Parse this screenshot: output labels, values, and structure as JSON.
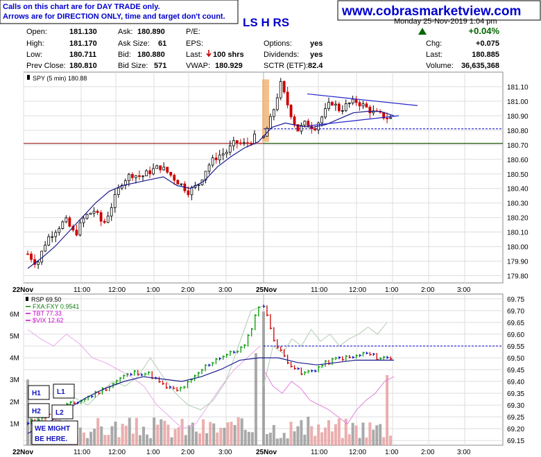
{
  "header": {
    "disclaimer_line1": "Calls on this chart are for DAY TRADE only.",
    "disclaimer_line2": "Arrows are for DIRECTION ONLY, time and target don't count.",
    "website": "www.cobrasmarketview.com",
    "pattern_label": "LS H RS",
    "date_label": "Monday 25-Nov-2019 1:04 pm",
    "change_pct": "+0.04%",
    "colors": {
      "disclaimer": "#0000cc",
      "website": "#0000cc",
      "pattern": "#0000cc",
      "change_pct": "#006600",
      "up_arrow": "#006600"
    }
  },
  "quote": {
    "open_label": "Open:",
    "open": "181.130",
    "high_label": "High:",
    "high": "181.170",
    "low_label": "Low:",
    "low": "180.711",
    "prev_close_label": "Prev Close:",
    "prev_close": "180.810",
    "ask_label": "Ask:",
    "ask": "180.890",
    "ask_size_label": "Ask Size:",
    "ask_size": "61",
    "bid_label": "Bid:",
    "bid": "180.880",
    "bid_size_label": "Bid Size:",
    "bid_size": "571",
    "pe_label": "P/E:",
    "pe": "",
    "eps_label": "EPS:",
    "eps": "",
    "last_label": "Last:",
    "last_shrs": "100 shrs",
    "vwap_label": "VWAP:",
    "vwap": "180.929",
    "options_label": "Options:",
    "options": "yes",
    "dividends_label": "Dividends:",
    "dividends": "yes",
    "sctr_label": "SCTR (ETF):",
    "sctr": "82.4",
    "chg_label": "Chg:",
    "chg": "+0.075",
    "last2_label": "Last:",
    "last": "180.885",
    "volume_label": "Volume:",
    "volume": "36,635,368"
  },
  "chart_data": [
    {
      "type": "candlestick",
      "legend": "SPY (5 min) 180.88",
      "ylim": [
        179.75,
        181.2
      ],
      "yticks": [
        "181.10",
        "181.00",
        "180.90",
        "180.80",
        "180.70",
        "180.60",
        "180.50",
        "180.40",
        "180.30",
        "180.20",
        "180.10",
        "180.00",
        "179.90",
        "179.80"
      ],
      "ytick_values": [
        181.1,
        181.0,
        180.9,
        180.8,
        180.7,
        180.6,
        180.5,
        180.4,
        180.3,
        180.2,
        180.1,
        180.0,
        179.9,
        179.8
      ],
      "xtick_labels": [
        "22Nov",
        "11:00",
        "12:00",
        "1:00",
        "2:00",
        "3:00",
        "25Nov",
        "11:00",
        "12:00",
        "1:00",
        "2:00",
        "3:00"
      ],
      "close_path": [
        179.95,
        179.88,
        180.05,
        180.12,
        180.18,
        180.08,
        180.2,
        180.25,
        180.15,
        180.3,
        180.45,
        180.5,
        180.48,
        180.52,
        180.55,
        180.5,
        180.44,
        180.38,
        180.42,
        180.55,
        180.62,
        180.65,
        180.72,
        180.7,
        180.75,
        180.9,
        181.12,
        180.95,
        180.8,
        180.85,
        180.82,
        180.9,
        181.0,
        180.94,
        180.98,
        181.0,
        180.96,
        180.92,
        180.9,
        180.88
      ],
      "ma_path": [
        179.85,
        179.92,
        180.0,
        180.1,
        180.2,
        180.3,
        180.38,
        180.42,
        180.44,
        180.46,
        180.48,
        180.42,
        180.4,
        180.45,
        180.55,
        180.62,
        180.68,
        180.72,
        180.82,
        180.85,
        180.83,
        180.82,
        180.84,
        180.88,
        180.92,
        180.93,
        180.93,
        180.9
      ],
      "prev_close_line": 180.81,
      "support_line": 180.71,
      "triangle_upper": [
        [
          181.03,
          180.97
        ]
      ],
      "triangle_lower": [
        [
          180.83,
          180.9
        ]
      ],
      "colors": {
        "up": "#000000",
        "down": "#cc0000",
        "ma": "#1a1a8c",
        "prev_close": "#0000cc",
        "support": "#006600",
        "triangle": "#2020cc",
        "gap_bar": "#f0b070"
      }
    },
    {
      "type": "line_volume",
      "legend_items": [
        "RSP 69.50",
        "FXA:FXY 0.9541",
        "TBT 77.33",
        "$VIX 12.62"
      ],
      "legend_colors": [
        "#000000",
        "#0a7a0a",
        "#cc00cc",
        "#cc00cc"
      ],
      "ylim": [
        69.13,
        69.77
      ],
      "yticks": [
        "69.75",
        "69.70",
        "69.65",
        "69.60",
        "69.55",
        "69.50",
        "69.45",
        "69.40",
        "69.35",
        "69.30",
        "69.25",
        "69.20",
        "69.15"
      ],
      "ytick_values": [
        69.75,
        69.7,
        69.65,
        69.6,
        69.55,
        69.5,
        69.45,
        69.4,
        69.35,
        69.3,
        69.25,
        69.2,
        69.15
      ],
      "volume_ticks": [
        "6M",
        "5M",
        "4M",
        "3M",
        "2M",
        "1M"
      ],
      "volume_tick_values": [
        6,
        5,
        4,
        3,
        2,
        1
      ],
      "xtick_labels": [
        "22Nov",
        "11:00",
        "12:00",
        "1:00",
        "2:00",
        "3:00",
        "25Nov",
        "11:00",
        "12:00",
        "1:00",
        "2:00",
        "3:00"
      ],
      "rsp_path": [
        69.22,
        69.25,
        69.28,
        69.3,
        69.32,
        69.35,
        69.38,
        69.42,
        69.44,
        69.43,
        69.38,
        69.36,
        69.4,
        69.46,
        69.5,
        69.52,
        69.55,
        69.72,
        69.55,
        69.48,
        69.43,
        69.45,
        69.48,
        69.5,
        69.5,
        69.52,
        69.5,
        69.5
      ],
      "ma_path": [
        69.18,
        69.22,
        69.28,
        69.33,
        69.37,
        69.4,
        69.42,
        69.41,
        69.4,
        69.42,
        69.45,
        69.49,
        69.5,
        69.5,
        69.48,
        69.47,
        69.48,
        69.49,
        69.49,
        69.49
      ],
      "reference_line": 69.55,
      "annotations": {
        "h1": "H1",
        "l1": "L1",
        "h2": "H2",
        "l2": "L2",
        "note_line1": "WE MIGHT",
        "note_line2": "BE HERE."
      },
      "colors": {
        "up": "#009900",
        "down": "#cc0000",
        "neutral": "#0000cc",
        "ma": "#1a1a8c",
        "volume": "#9a9a9a",
        "volume_down": "#e8a0a0",
        "reference": "#0000cc",
        "fxa": "#b0ccb0",
        "tbt": "#e8a8e8",
        "vix": "#e080e0"
      }
    }
  ]
}
